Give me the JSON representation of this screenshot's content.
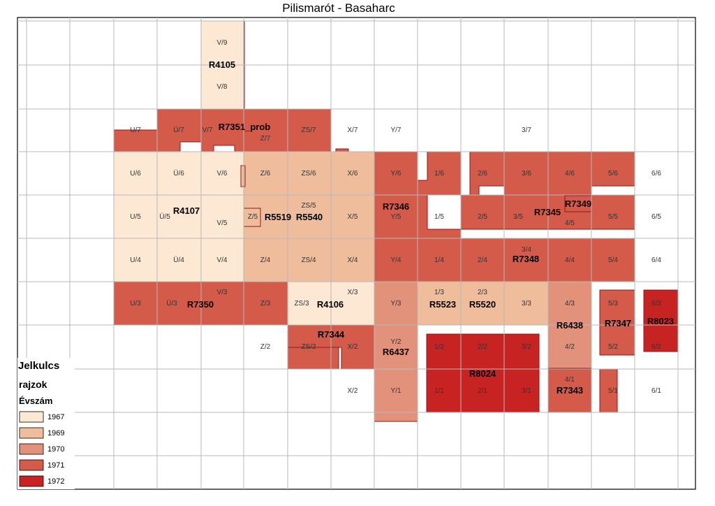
{
  "title": "Pilismarót - Basaharc",
  "legend": {
    "heading": "Jelkulcs",
    "layer": "rajzok",
    "field": "Évszám",
    "items": [
      {
        "year": "1967",
        "color": "#fde8d4"
      },
      {
        "year": "1969",
        "color": "#efbd9b"
      },
      {
        "year": "1970",
        "color": "#e2927a"
      },
      {
        "year": "1971",
        "color": "#d45a4a"
      },
      {
        "year": "1972",
        "color": "#c82323"
      }
    ]
  },
  "grid": {
    "columns": [
      "U",
      "Ü",
      "V",
      "Z",
      "ZS",
      "X",
      "Y",
      "1",
      "2",
      "3",
      "4",
      "5",
      "6"
    ],
    "rows": [
      "7",
      "6",
      "5",
      "4",
      "3",
      "2",
      "1"
    ]
  },
  "cell_labels": [
    "V/9",
    "V/8",
    "U/7",
    "Ü/7",
    "V/7",
    "Z/7",
    "ZS/7",
    "X/7",
    "Y/7",
    "3/7",
    "U/6",
    "Ü/6",
    "V/6",
    "Z/6",
    "ZS/6",
    "X/6",
    "Y/6",
    "1/6",
    "2/6",
    "3/6",
    "4/6",
    "5/6",
    "6/6",
    "U/5",
    "Ü/5",
    "V/5",
    "Z/5",
    "ZS/5",
    "X/5",
    "Y/5",
    "1/5",
    "2/5",
    "3/5",
    "4/5",
    "5/5",
    "6/5",
    "U/4",
    "Ü/4",
    "V/4",
    "Z/4",
    "ZS/4",
    "X/4",
    "Y/4",
    "1/4",
    "2/4",
    "3/4",
    "4/4",
    "5/4",
    "6/4",
    "U/3",
    "Ü/3",
    "V/3",
    "Z/3",
    "ZS/3",
    "X/3",
    "Y/3",
    "1/3",
    "2/3",
    "3/3",
    "4/3",
    "5/3",
    "6/3",
    "Z/2",
    "ZS/2",
    "X/2",
    "Y/2",
    "1/2",
    "2/2",
    "3/2",
    "4/2",
    "5/2",
    "6/2",
    "X/2",
    "Y/1",
    "1/1",
    "2/1",
    "3/1",
    "4/1",
    "5/1",
    "6/1"
  ],
  "drawings": [
    {
      "id": "R4105",
      "year": "1967"
    },
    {
      "id": "R7351_prob",
      "year": "1971"
    },
    {
      "id": "R4107",
      "year": "1967"
    },
    {
      "id": "R5519",
      "year": "1969"
    },
    {
      "id": "R5540",
      "year": "1969"
    },
    {
      "id": "R7346",
      "year": "1971"
    },
    {
      "id": "R7345",
      "year": "1971"
    },
    {
      "id": "R7349",
      "year": "1971"
    },
    {
      "id": "R7348",
      "year": "1971"
    },
    {
      "id": "R7350",
      "year": "1971"
    },
    {
      "id": "R4106",
      "year": "1967"
    },
    {
      "id": "R5523",
      "year": "1969"
    },
    {
      "id": "R5520",
      "year": "1969"
    },
    {
      "id": "R6438",
      "year": "1970"
    },
    {
      "id": "R7347",
      "year": "1971"
    },
    {
      "id": "R8023",
      "year": "1972"
    },
    {
      "id": "R7344",
      "year": "1971"
    },
    {
      "id": "R6437",
      "year": "1970"
    },
    {
      "id": "R8024",
      "year": "1972"
    },
    {
      "id": "R7343",
      "year": "1971"
    }
  ]
}
